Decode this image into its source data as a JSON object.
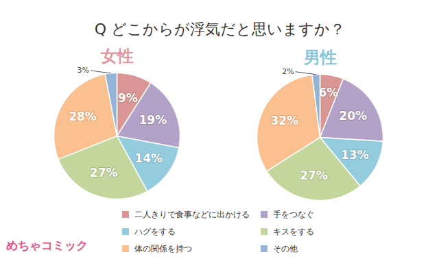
{
  "title": "Q どこからが浮気だと思いますか？",
  "logo": "めちゃコミック",
  "chart_data": [
    {
      "type": "pie",
      "title": "女性",
      "categories": [
        "二人きりで食事などに出かける",
        "手をつなぐ",
        "ハグをする",
        "キスをする",
        "体の関係を持つ",
        "その他"
      ],
      "values": [
        9,
        19,
        14,
        27,
        28,
        3
      ],
      "value_labels": [
        "9%",
        "19%",
        "14%",
        "27%",
        "28%",
        "3%"
      ],
      "colors": [
        "#d99694",
        "#b3a2c7",
        "#93cddd",
        "#c3d69b",
        "#fac090",
        "#95b3d7"
      ],
      "data_labels": true,
      "legend": "bottom"
    },
    {
      "type": "pie",
      "title": "男性",
      "categories": [
        "二人きりで食事などに出かける",
        "手をつなぐ",
        "ハグをする",
        "キスをする",
        "体の関係を持つ",
        "その他"
      ],
      "values": [
        6,
        20,
        13,
        27,
        32,
        2
      ],
      "value_labels": [
        "6%",
        "20%",
        "13%",
        "27%",
        "32%",
        "2%"
      ],
      "colors": [
        "#d99694",
        "#b3a2c7",
        "#93cddd",
        "#c3d69b",
        "#fac090",
        "#95b3d7"
      ],
      "data_labels": true,
      "legend": "bottom"
    }
  ]
}
